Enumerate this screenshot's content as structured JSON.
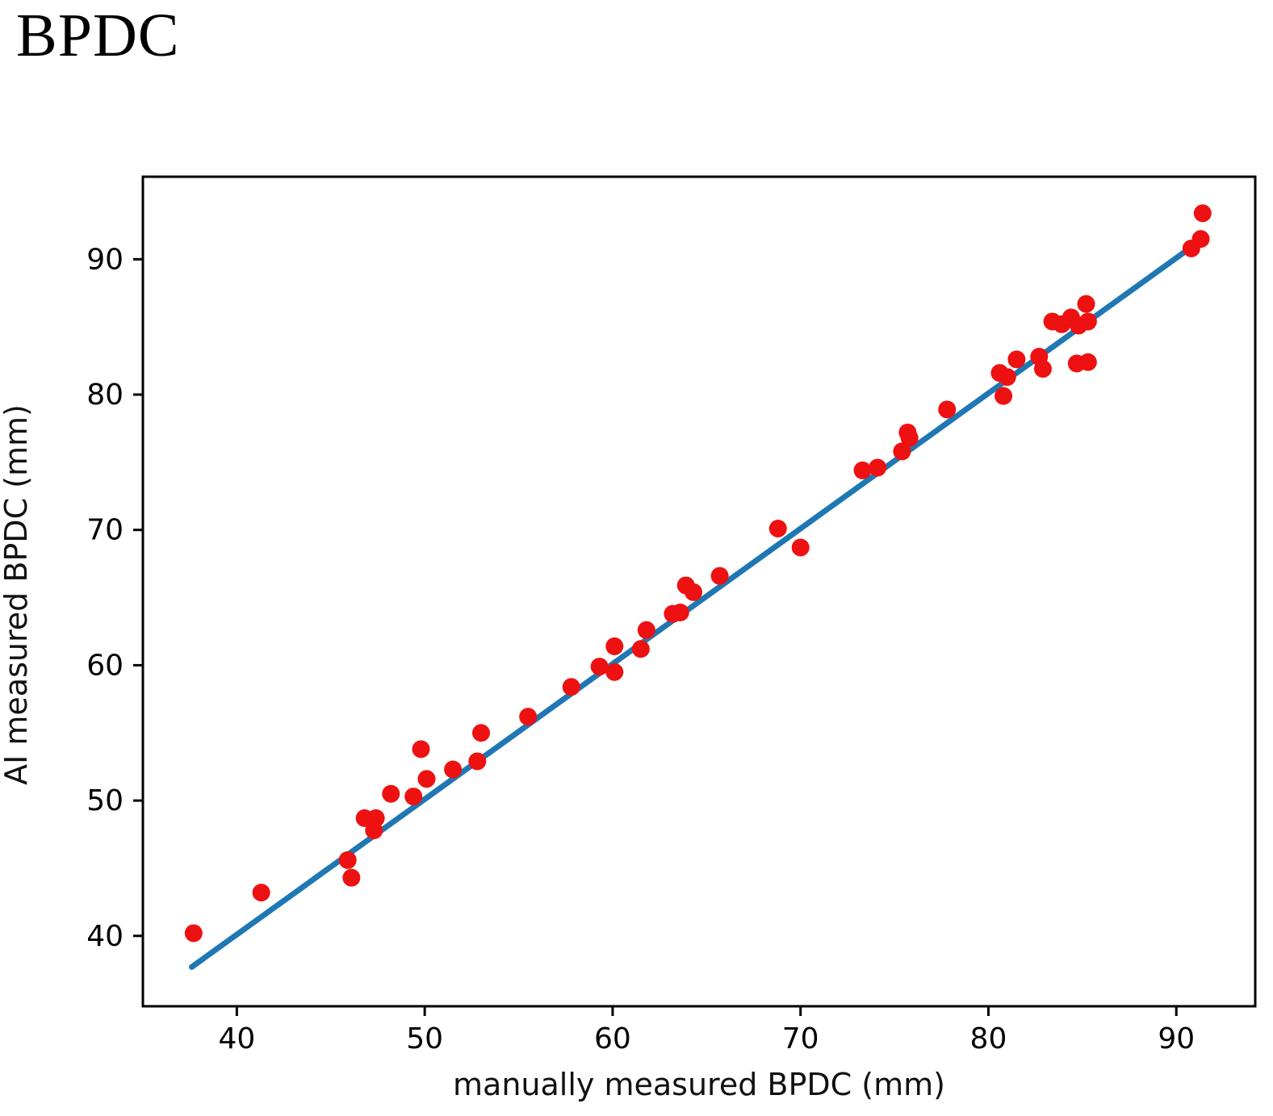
{
  "title": "BPDC",
  "chart_data": {
    "type": "scatter",
    "title": "BPDC",
    "xlabel": "manually measured BPDC (mm)",
    "ylabel": "AI measured BPDC (mm)",
    "xlim": [
      35.0,
      94.2
    ],
    "ylim": [
      34.8,
      96.1
    ],
    "x_ticks": [
      40,
      50,
      60,
      70,
      80,
      90
    ],
    "y_ticks": [
      40,
      50,
      60,
      70,
      80,
      90
    ],
    "grid": false,
    "legend": "none",
    "point_color": "#ee1111",
    "line_color": "#1f77b4",
    "axis_color": "#000000",
    "fit_line": {
      "x1": 37.6,
      "y1": 37.7,
      "x2": 91.2,
      "y2": 91.3
    },
    "points": [
      [
        37.7,
        40.2
      ],
      [
        41.3,
        43.2
      ],
      [
        45.9,
        45.6
      ],
      [
        46.1,
        44.3
      ],
      [
        46.8,
        48.7
      ],
      [
        47.4,
        48.7
      ],
      [
        47.3,
        47.8
      ],
      [
        48.2,
        50.5
      ],
      [
        49.4,
        50.3
      ],
      [
        49.8,
        53.8
      ],
      [
        50.1,
        51.6
      ],
      [
        51.5,
        52.3
      ],
      [
        52.8,
        52.9
      ],
      [
        53.0,
        55.0
      ],
      [
        55.5,
        56.2
      ],
      [
        57.8,
        58.4
      ],
      [
        59.3,
        59.9
      ],
      [
        60.1,
        59.5
      ],
      [
        60.1,
        61.4
      ],
      [
        61.5,
        61.2
      ],
      [
        61.8,
        62.6
      ],
      [
        63.2,
        63.8
      ],
      [
        63.6,
        63.9
      ],
      [
        63.9,
        65.9
      ],
      [
        64.3,
        65.4
      ],
      [
        65.7,
        66.6
      ],
      [
        68.8,
        70.1
      ],
      [
        70.0,
        68.7
      ],
      [
        73.3,
        74.4
      ],
      [
        74.1,
        74.6
      ],
      [
        75.4,
        75.8
      ],
      [
        75.7,
        77.2
      ],
      [
        75.8,
        76.8
      ],
      [
        77.8,
        78.9
      ],
      [
        80.6,
        81.6
      ],
      [
        81.0,
        81.3
      ],
      [
        80.8,
        79.9
      ],
      [
        81.5,
        82.6
      ],
      [
        82.7,
        82.8
      ],
      [
        82.9,
        81.9
      ],
      [
        83.4,
        85.4
      ],
      [
        83.9,
        85.2
      ],
      [
        84.4,
        85.7
      ],
      [
        84.8,
        85.1
      ],
      [
        85.3,
        85.4
      ],
      [
        85.2,
        86.7
      ],
      [
        84.7,
        82.3
      ],
      [
        85.3,
        82.4
      ],
      [
        90.8,
        90.8
      ],
      [
        91.3,
        91.5
      ],
      [
        91.4,
        93.4
      ]
    ]
  }
}
